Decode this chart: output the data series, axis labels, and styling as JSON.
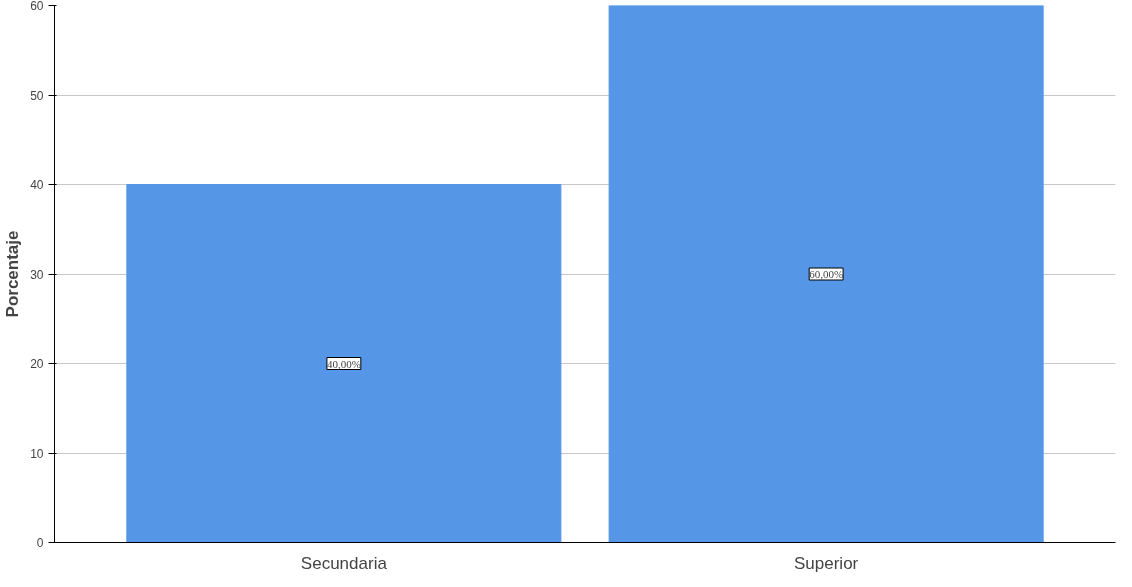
{
  "chart_data": {
    "type": "bar",
    "ylabel": "Porcentaje",
    "categories": [
      "Secundaria",
      "Superior"
    ],
    "values": [
      40,
      60
    ],
    "color": "#5596e6",
    "value_labels": [
      "40,00%",
      "60,00%"
    ],
    "ylim": [
      0,
      60
    ],
    "yticks": [
      0,
      10,
      20,
      30,
      40,
      50,
      60
    ],
    "grid": "y"
  }
}
